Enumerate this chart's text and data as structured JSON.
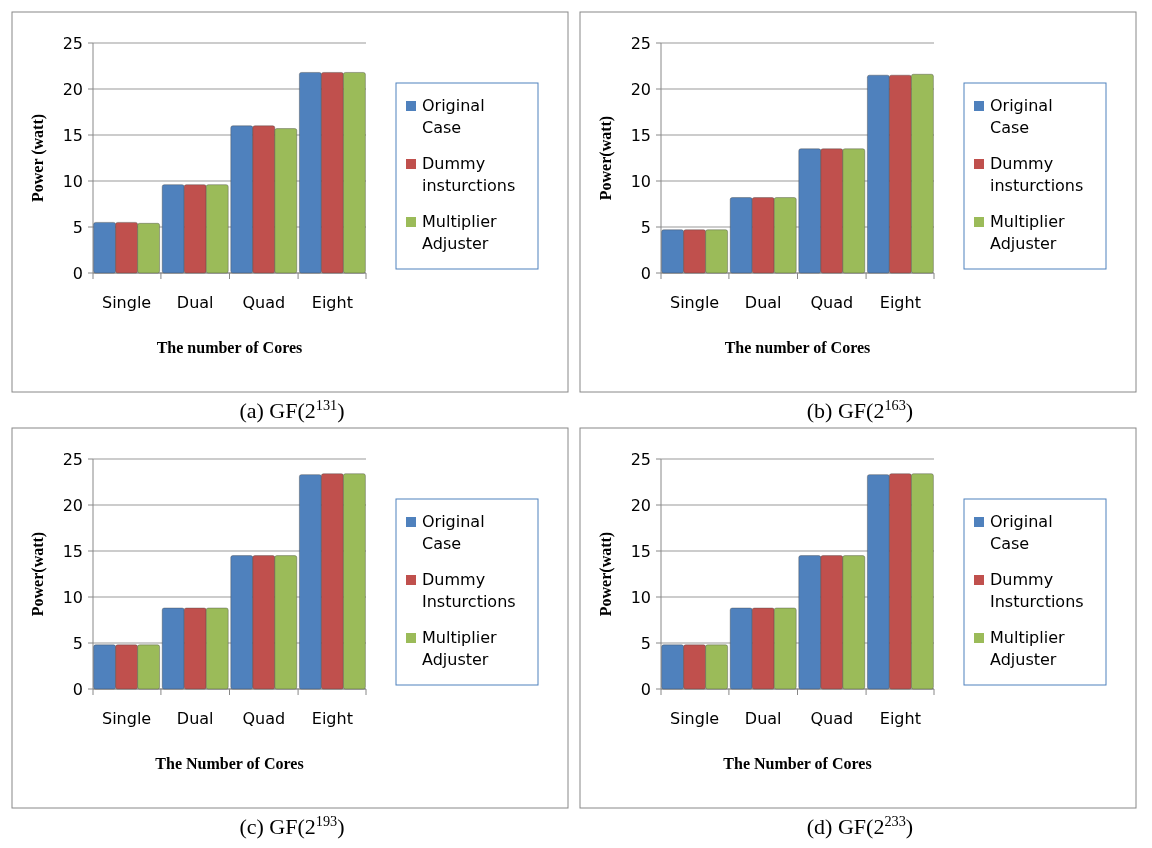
{
  "chart_data": [
    {
      "type": "bar",
      "title": "(a) GF(2$^{131}$)",
      "xlabel": "The number of Cores",
      "ylabel": "Power (watt)",
      "categories": [
        "Single",
        "Dual",
        "Quad",
        "Eight"
      ],
      "series": [
        {
          "name": "Original Case",
          "color": "#4f81bd",
          "values": [
            5.5,
            9.6,
            16.0,
            21.8
          ]
        },
        {
          "name": "Dummy insturctions",
          "color": "#c0504d",
          "values": [
            5.5,
            9.6,
            16.0,
            21.8
          ]
        },
        {
          "name": "Multiplier Adjuster",
          "color": "#9bbb59",
          "values": [
            5.4,
            9.6,
            15.7,
            21.8
          ]
        }
      ],
      "ylim": [
        0,
        25
      ],
      "yticks": [
        0,
        5,
        10,
        15,
        20,
        25
      ],
      "grid": "y",
      "legend": "right"
    },
    {
      "type": "bar",
      "title": "(b) GF(2$^{163}$)",
      "xlabel": "The number of Cores",
      "ylabel": "Power(watt)",
      "categories": [
        "Single",
        "Dual",
        "Quad",
        "Eight"
      ],
      "series": [
        {
          "name": "Original Case",
          "color": "#4f81bd",
          "values": [
            4.7,
            8.2,
            13.5,
            21.5
          ]
        },
        {
          "name": "Dummy insturctions",
          "color": "#c0504d",
          "values": [
            4.7,
            8.2,
            13.5,
            21.5
          ]
        },
        {
          "name": "Multiplier Adjuster",
          "color": "#9bbb59",
          "values": [
            4.7,
            8.2,
            13.5,
            21.6
          ]
        }
      ],
      "ylim": [
        0,
        25
      ],
      "yticks": [
        0,
        5,
        10,
        15,
        20,
        25
      ],
      "grid": "y",
      "legend": "right"
    },
    {
      "type": "bar",
      "title": "(c) GF(2$^{193}$)",
      "xlabel": "The Number of Cores",
      "ylabel": "Power(watt)",
      "categories": [
        "Single",
        "Dual",
        "Quad",
        "Eight"
      ],
      "series": [
        {
          "name": "Original Case",
          "color": "#4f81bd",
          "values": [
            4.8,
            8.8,
            14.5,
            23.3
          ]
        },
        {
          "name": "Dummy Insturctions",
          "color": "#c0504d",
          "values": [
            4.8,
            8.8,
            14.5,
            23.4
          ]
        },
        {
          "name": "Multiplier Adjuster",
          "color": "#9bbb59",
          "values": [
            4.8,
            8.8,
            14.5,
            23.4
          ]
        }
      ],
      "ylim": [
        0,
        25
      ],
      "yticks": [
        0,
        5,
        10,
        15,
        20,
        25
      ],
      "grid": "y",
      "legend": "right"
    },
    {
      "type": "bar",
      "title": "(d) GF(2$^{233}$)",
      "xlabel": "The Number of Cores",
      "ylabel": "Power(watt)",
      "categories": [
        "Single",
        "Dual",
        "Quad",
        "Eight"
      ],
      "series": [
        {
          "name": "Original Case",
          "color": "#4f81bd",
          "values": [
            4.8,
            8.8,
            14.5,
            23.3
          ]
        },
        {
          "name": "Dummy Insturctions",
          "color": "#c0504d",
          "values": [
            4.8,
            8.8,
            14.5,
            23.4
          ]
        },
        {
          "name": "Multiplier Adjuster",
          "color": "#9bbb59",
          "values": [
            4.8,
            8.8,
            14.5,
            23.4
          ]
        }
      ],
      "ylim": [
        0,
        25
      ],
      "yticks": [
        0,
        5,
        10,
        15,
        20,
        25
      ],
      "grid": "y",
      "legend": "right"
    }
  ]
}
